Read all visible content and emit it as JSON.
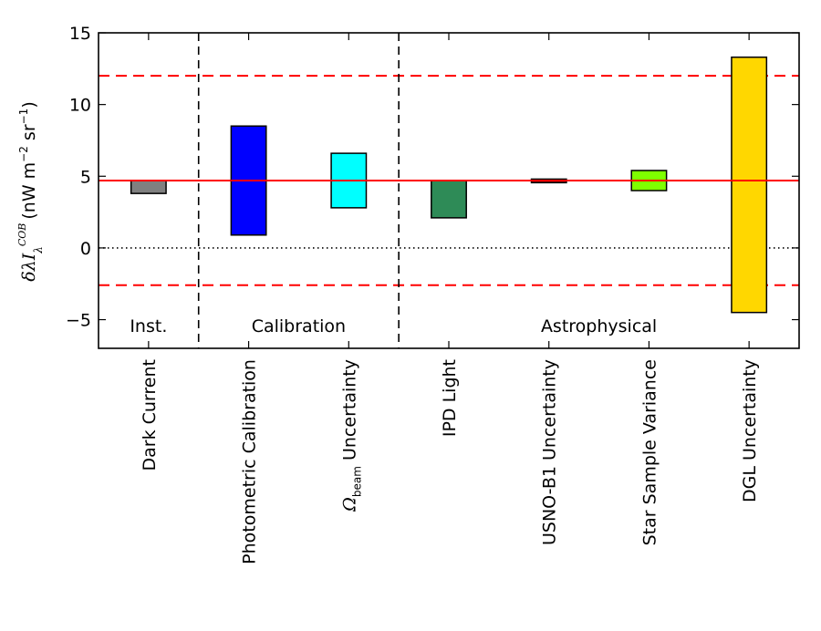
{
  "chart_data": {
    "type": "floating-bar",
    "ylabel": {
      "symbol": "δλI",
      "subscript": "λ",
      "superscript": "COB",
      "units_prefix": "(nW m",
      "units_exp1": "−2",
      "units_mid": " sr",
      "units_exp2": "−1",
      "units_suffix": ")"
    },
    "ylim": [
      -7,
      15
    ],
    "yticks": [
      {
        "value": -5,
        "label": "−5"
      },
      {
        "value": 0,
        "label": "0"
      },
      {
        "value": 5,
        "label": "5"
      },
      {
        "value": 10,
        "label": "10"
      },
      {
        "value": 15,
        "label": "15"
      }
    ],
    "bars": [
      {
        "label": "Dark Current",
        "low": 3.8,
        "high": 4.7,
        "color": "#808080"
      },
      {
        "label": "Photometric Calibration",
        "low": 0.9,
        "high": 8.5,
        "color": "#0000ff"
      },
      {
        "label_main": "Ω",
        "label_sub": "beam",
        "label_rest": " Uncertainty",
        "low": 2.8,
        "high": 6.6,
        "color": "#00ffff"
      },
      {
        "label": "IPD Light",
        "low": 2.1,
        "high": 4.7,
        "color": "#2e8b57"
      },
      {
        "label": "USNO-B1 Uncertainty",
        "low": 4.55,
        "high": 4.8,
        "color": "#8b0000"
      },
      {
        "label": "Star Sample Variance",
        "low": 4.0,
        "high": 5.4,
        "color": "#7fff00"
      },
      {
        "label": "DGL Uncertainty",
        "low": -4.5,
        "high": 13.3,
        "color": "#ffd700"
      }
    ],
    "reference_lines": {
      "central_value": 4.7,
      "upper_bound": 12.0,
      "lower_bound": -2.6,
      "zero": 0,
      "color": "#ff0000"
    },
    "groups": [
      {
        "label": "Inst."
      },
      {
        "label": "Calibration"
      },
      {
        "label": "Astrophysical"
      }
    ]
  }
}
